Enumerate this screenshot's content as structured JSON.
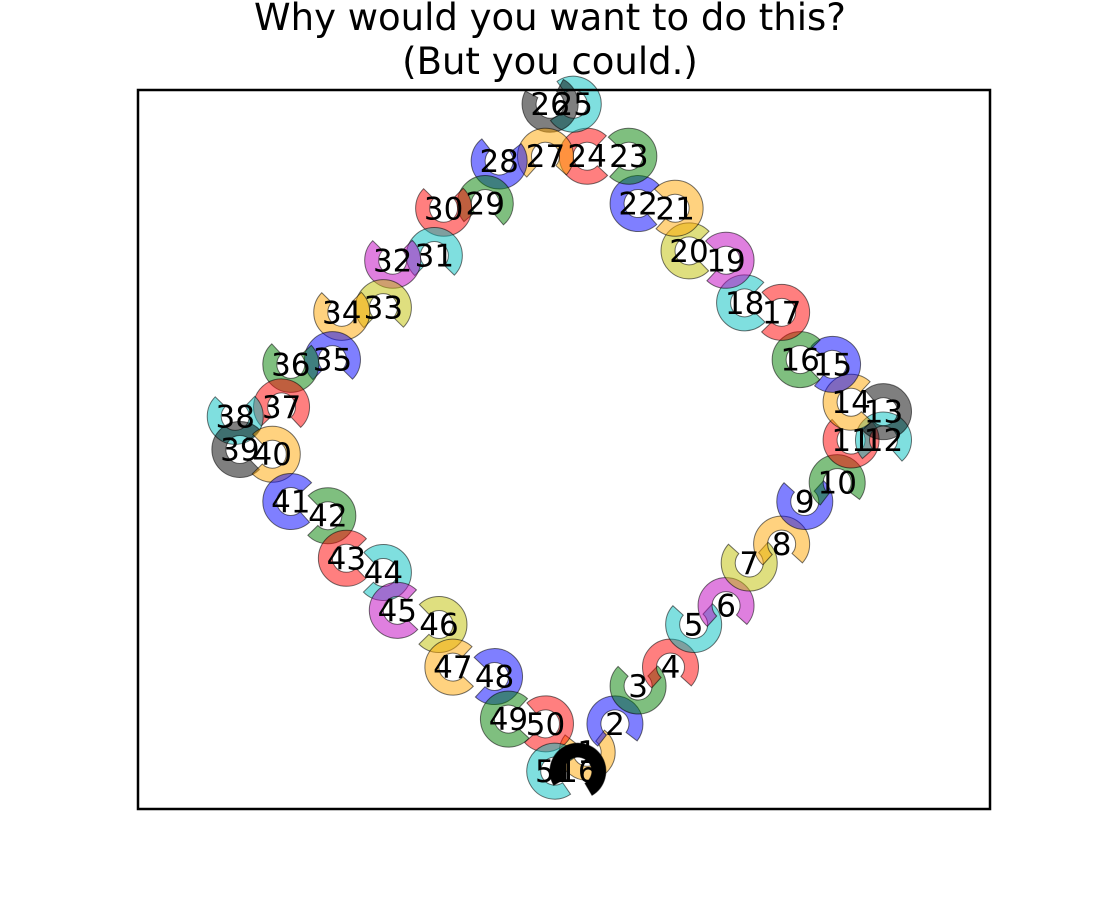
{
  "chart_data": {
    "type": "diagram",
    "title_lines": [
      "Why would you want to do this?",
      "(But you could.)"
    ],
    "title": "Why would you want to do this? (But you could.)",
    "xlabel": "",
    "ylabel": "",
    "axis_ticks": "hidden",
    "grid": false,
    "xlim": [
      -4.6,
      4.6
    ],
    "ylim": [
      -3.8,
      3.8
    ],
    "palette": [
      "#ffa500",
      "#0000ff",
      "#008000",
      "#ff0000",
      "#00bfbf",
      "#bf00bf",
      "#bfbf00",
      "#000000"
    ],
    "wedges": [
      {
        "label": "1",
        "x": 0.25,
        "y": -3.2,
        "color_index": 0
      },
      {
        "label": "2",
        "x": 0.55,
        "y": -2.9,
        "color_index": 1
      },
      {
        "label": "3",
        "x": 0.8,
        "y": -2.5,
        "color_index": 2
      },
      {
        "label": "4",
        "x": 1.15,
        "y": -2.3,
        "color_index": 3
      },
      {
        "label": "5",
        "x": 1.4,
        "y": -1.85,
        "color_index": 4
      },
      {
        "label": "6",
        "x": 1.75,
        "y": -1.65,
        "color_index": 5
      },
      {
        "label": "7",
        "x": 2.0,
        "y": -1.2,
        "color_index": 6
      },
      {
        "label": "8",
        "x": 2.35,
        "y": -1.0,
        "color_index": 0
      },
      {
        "label": "9",
        "x": 2.6,
        "y": -0.55,
        "color_index": 1
      },
      {
        "label": "10",
        "x": 2.95,
        "y": -0.35,
        "color_index": 2
      },
      {
        "label": "11",
        "x": 3.1,
        "y": 0.1,
        "color_index": 3
      },
      {
        "label": "12",
        "x": 3.45,
        "y": 0.1,
        "color_index": 4
      },
      {
        "label": "13",
        "x": 3.45,
        "y": 0.4,
        "color_index": 7
      },
      {
        "label": "14",
        "x": 3.1,
        "y": 0.5,
        "color_index": 0
      },
      {
        "label": "15",
        "x": 2.9,
        "y": 0.9,
        "color_index": 1
      },
      {
        "label": "16",
        "x": 2.55,
        "y": 0.95,
        "color_index": 2
      },
      {
        "label": "17",
        "x": 2.35,
        "y": 1.45,
        "color_index": 3
      },
      {
        "label": "18",
        "x": 1.95,
        "y": 1.55,
        "color_index": 4
      },
      {
        "label": "19",
        "x": 1.75,
        "y": 2.0,
        "color_index": 5
      },
      {
        "label": "20",
        "x": 1.35,
        "y": 2.1,
        "color_index": 6
      },
      {
        "label": "21",
        "x": 1.2,
        "y": 2.55,
        "color_index": 0
      },
      {
        "label": "22",
        "x": 0.8,
        "y": 2.6,
        "color_index": 1
      },
      {
        "label": "23",
        "x": 0.7,
        "y": 3.1,
        "color_index": 2
      },
      {
        "label": "24",
        "x": 0.25,
        "y": 3.1,
        "color_index": 3
      },
      {
        "label": "25",
        "x": 0.1,
        "y": 3.65,
        "color_index": 4
      },
      {
        "label": "26",
        "x": -0.15,
        "y": 3.65,
        "color_index": 7
      },
      {
        "label": "27",
        "x": -0.2,
        "y": 3.1,
        "color_index": 0
      },
      {
        "label": "28",
        "x": -0.7,
        "y": 3.05,
        "color_index": 1
      },
      {
        "label": "29",
        "x": -0.85,
        "y": 2.6,
        "color_index": 2
      },
      {
        "label": "30",
        "x": -1.3,
        "y": 2.55,
        "color_index": 3
      },
      {
        "label": "31",
        "x": -1.4,
        "y": 2.05,
        "color_index": 4
      },
      {
        "label": "32",
        "x": -1.85,
        "y": 2.0,
        "color_index": 5
      },
      {
        "label": "33",
        "x": -1.95,
        "y": 1.5,
        "color_index": 6
      },
      {
        "label": "34",
        "x": -2.4,
        "y": 1.45,
        "color_index": 0
      },
      {
        "label": "35",
        "x": -2.5,
        "y": 0.95,
        "color_index": 1
      },
      {
        "label": "36",
        "x": -2.95,
        "y": 0.9,
        "color_index": 2
      },
      {
        "label": "37",
        "x": -3.05,
        "y": 0.45,
        "color_index": 3
      },
      {
        "label": "38",
        "x": -3.55,
        "y": 0.35,
        "color_index": 4
      },
      {
        "label": "39",
        "x": -3.5,
        "y": 0.0,
        "color_index": 7
      },
      {
        "label": "40",
        "x": -3.15,
        "y": -0.05,
        "color_index": 0
      },
      {
        "label": "41",
        "x": -2.95,
        "y": -0.55,
        "color_index": 1
      },
      {
        "label": "42",
        "x": -2.55,
        "y": -0.7,
        "color_index": 2
      },
      {
        "label": "43",
        "x": -2.35,
        "y": -1.15,
        "color_index": 3
      },
      {
        "label": "44",
        "x": -1.95,
        "y": -1.3,
        "color_index": 4
      },
      {
        "label": "45",
        "x": -1.8,
        "y": -1.7,
        "color_index": 5
      },
      {
        "label": "46",
        "x": -1.35,
        "y": -1.85,
        "color_index": 6
      },
      {
        "label": "47",
        "x": -1.2,
        "y": -2.3,
        "color_index": 0
      },
      {
        "label": "48",
        "x": -0.75,
        "y": -2.4,
        "color_index": 1
      },
      {
        "label": "49",
        "x": -0.6,
        "y": -2.85,
        "color_index": 2
      },
      {
        "label": "50",
        "x": -0.2,
        "y": -2.9,
        "color_index": 3
      },
      {
        "label": "51",
        "x": -0.1,
        "y": -3.4,
        "color_index": 4
      },
      {
        "label": "16",
        "x": 0.15,
        "y": -3.4,
        "color_index": 7
      }
    ]
  }
}
